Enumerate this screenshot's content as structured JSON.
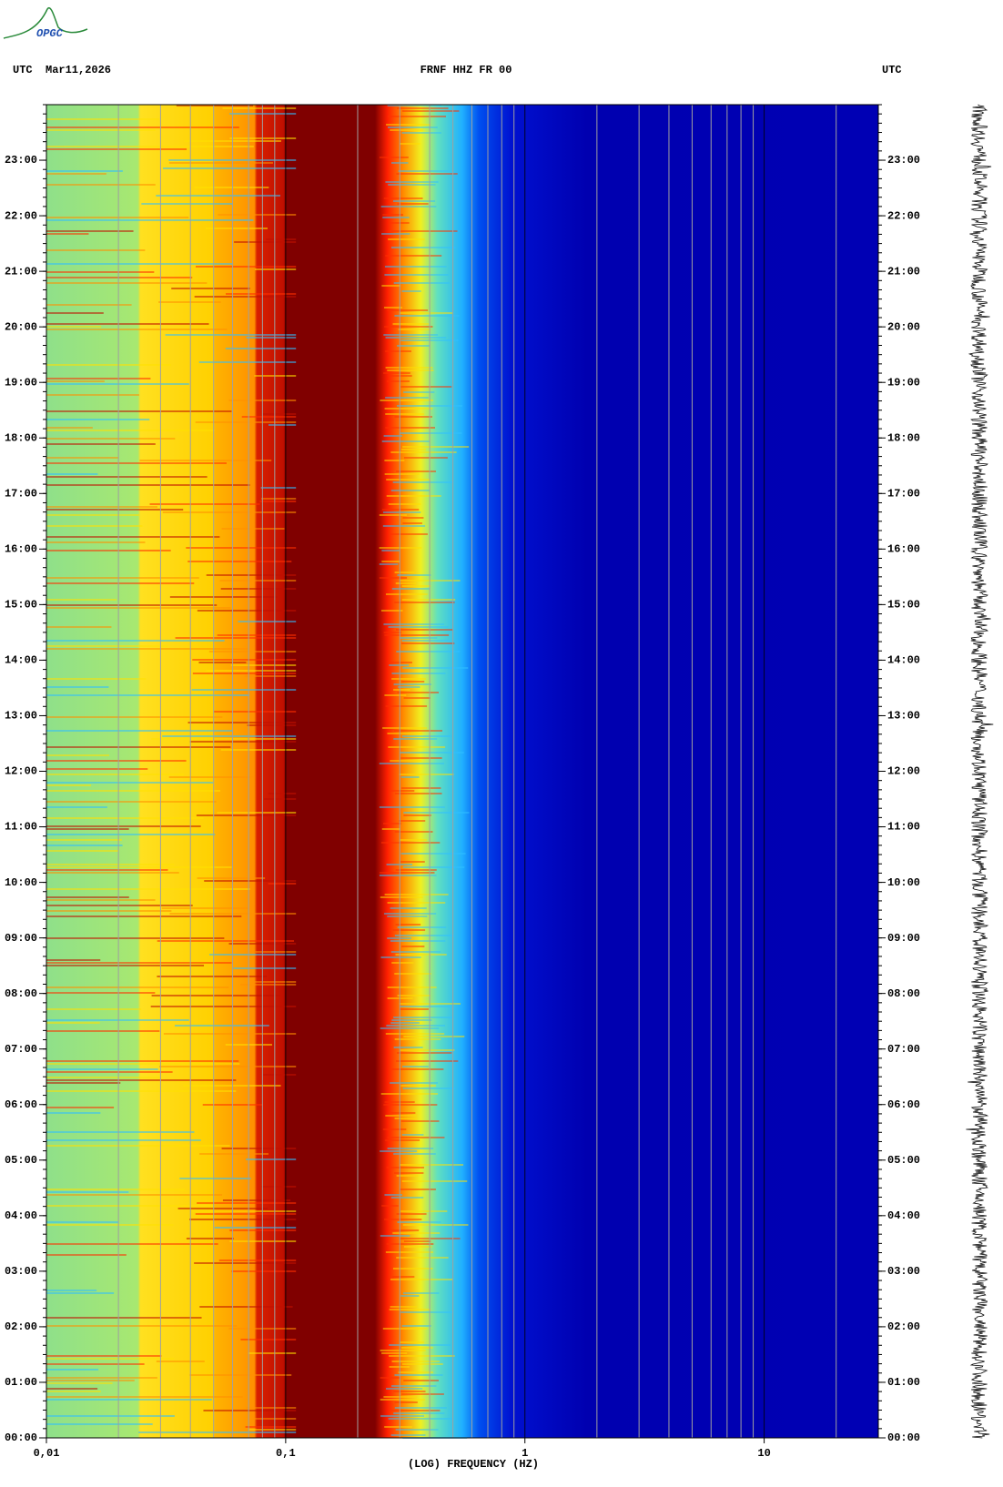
{
  "chart_data": {
    "type": "spectrogram",
    "logo": "OPGC",
    "left_label": "UTC",
    "date": "Mar11,2026",
    "title": "FRNF HHZ FR 00",
    "right_label": "UTC",
    "xlabel": "(LOG) FREQUENCY (HZ)",
    "xscale": "log",
    "xlim": [
      0.01,
      30
    ],
    "xticks": [
      {
        "value": 0.01,
        "label": "0,01"
      },
      {
        "value": 0.1,
        "label": "0,1"
      },
      1,
      10
    ],
    "ylim": [
      0,
      24
    ],
    "yticks": [
      {
        "value": 0,
        "label": "00:00"
      },
      {
        "value": 1,
        "label": "01:00"
      },
      {
        "value": 2,
        "label": "02:00"
      },
      {
        "value": 3,
        "label": "03:00"
      },
      {
        "value": 4,
        "label": "04:00"
      },
      {
        "value": 5,
        "label": "05:00"
      },
      {
        "value": 6,
        "label": "06:00"
      },
      {
        "value": 7,
        "label": "07:00"
      },
      {
        "value": 8,
        "label": "08:00"
      },
      {
        "value": 9,
        "label": "09:00"
      },
      {
        "value": 10,
        "label": "10:00"
      },
      {
        "value": 11,
        "label": "11:00"
      },
      {
        "value": 12,
        "label": "12:00"
      },
      {
        "value": 13,
        "label": "13:00"
      },
      {
        "value": 14,
        "label": "14:00"
      },
      {
        "value": 15,
        "label": "15:00"
      },
      {
        "value": 16,
        "label": "16:00"
      },
      {
        "value": 17,
        "label": "17:00"
      },
      {
        "value": 18,
        "label": "18:00"
      },
      {
        "value": 19,
        "label": "19:00"
      },
      {
        "value": 20,
        "label": "20:00"
      },
      {
        "value": 21,
        "label": "21:00"
      },
      {
        "value": 22,
        "label": "22:00"
      },
      {
        "value": 23,
        "label": "23:00"
      }
    ]
  }
}
